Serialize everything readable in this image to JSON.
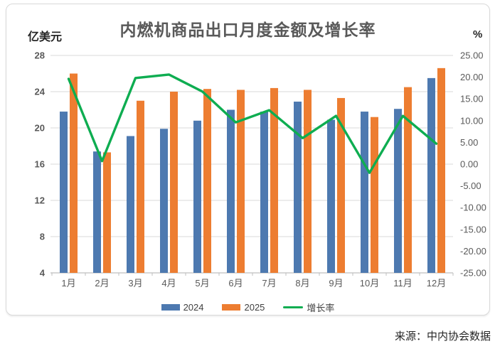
{
  "chart_data": {
    "type": "bar",
    "subtype": "grouped-bars-with-line-overlay",
    "title": "内燃机商品出口月度金额及增长率",
    "unit_left": "亿美元",
    "unit_right": "%",
    "categories": [
      "1月",
      "2月",
      "3月",
      "4月",
      "5月",
      "6月",
      "7月",
      "8月",
      "9月",
      "10月",
      "11月",
      "12月"
    ],
    "series": [
      {
        "name": "2024",
        "type": "bar",
        "axis": "left",
        "color": "#4d79b0",
        "values": [
          21.8,
          17.4,
          19.1,
          19.9,
          20.8,
          22.0,
          21.8,
          22.9,
          20.9,
          21.8,
          22.1,
          25.5
        ]
      },
      {
        "name": "2025",
        "type": "bar",
        "axis": "left",
        "color": "#ed7d31",
        "values": [
          26.0,
          17.3,
          23.0,
          24.0,
          24.3,
          24.2,
          24.4,
          24.2,
          23.3,
          21.2,
          24.5,
          26.6
        ]
      },
      {
        "name": "增长率",
        "type": "line",
        "axis": "right",
        "color": "#0ead51",
        "values": [
          19.6,
          0.7,
          19.8,
          20.6,
          16.7,
          9.6,
          12.4,
          6.0,
          11.1,
          -2.0,
          11.1,
          4.7
        ]
      }
    ],
    "axis_left": {
      "min": 4,
      "max": 28,
      "tick_step": 4,
      "ticks": [
        "28",
        "24",
        "20",
        "16",
        "12",
        "8",
        "4"
      ]
    },
    "axis_right": {
      "min": -25,
      "max": 25,
      "tick_step": 5,
      "ticks": [
        "25.00",
        "20.00",
        "15.00",
        "10.00",
        "5.00",
        "0.00",
        "-5.00",
        "-10.00",
        "-15.00",
        "-20.00",
        "-25.00"
      ]
    },
    "grid": true,
    "legend_position": "bottom",
    "colors": {
      "grid": "#d9d9d9",
      "axis_line": "#bfbfbf",
      "tick_text": "#595959",
      "title_text": "#595959"
    }
  },
  "source": "来源：中内协会数据"
}
